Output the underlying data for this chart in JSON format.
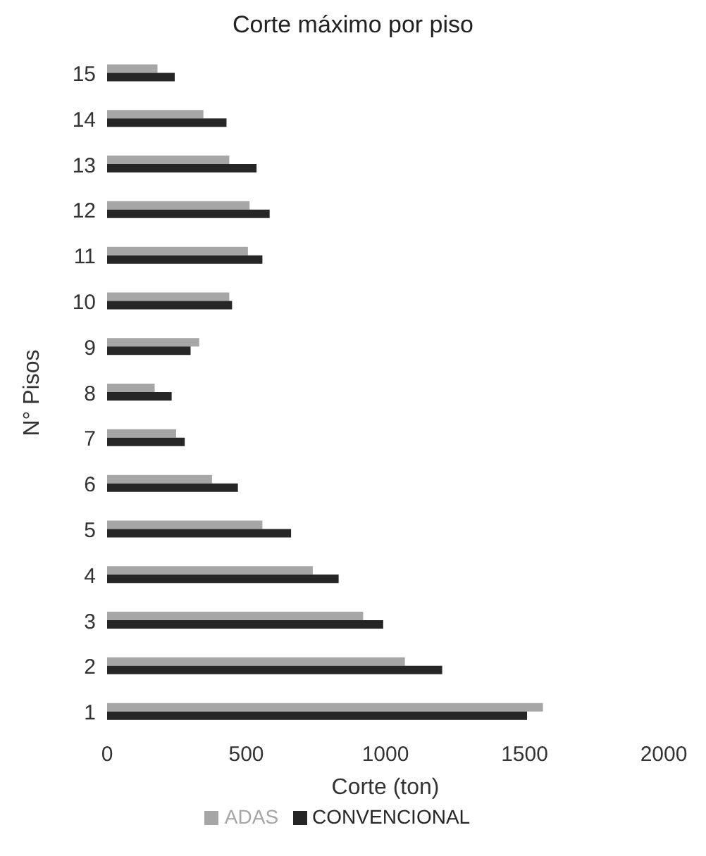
{
  "chart_data": {
    "type": "bar",
    "orientation": "horizontal",
    "title": "Corte máximo por piso",
    "xlabel": "Corte (ton)",
    "ylabel": "N° Pisos",
    "categories": [
      "15",
      "14",
      "13",
      "12",
      "11",
      "10",
      "9",
      "8",
      "7",
      "6",
      "5",
      "4",
      "3",
      "2",
      "1"
    ],
    "series": [
      {
        "name": "ADAS",
        "color": "#a6a6a6",
        "values": [
          181,
          346,
          439,
          512,
          506,
          439,
          331,
          171,
          248,
          377,
          558,
          739,
          920,
          1070,
          1566
        ]
      },
      {
        "name": "CONVENCIONAL",
        "color": "#262626",
        "values": [
          243,
          429,
          537,
          584,
          558,
          449,
          300,
          232,
          279,
          470,
          661,
          832,
          992,
          1204,
          1509
        ]
      }
    ],
    "xlim": [
      0,
      2000
    ],
    "xticks": [
      0,
      500,
      1000,
      1500,
      2000
    ],
    "grid": false,
    "legend": "bottom"
  }
}
